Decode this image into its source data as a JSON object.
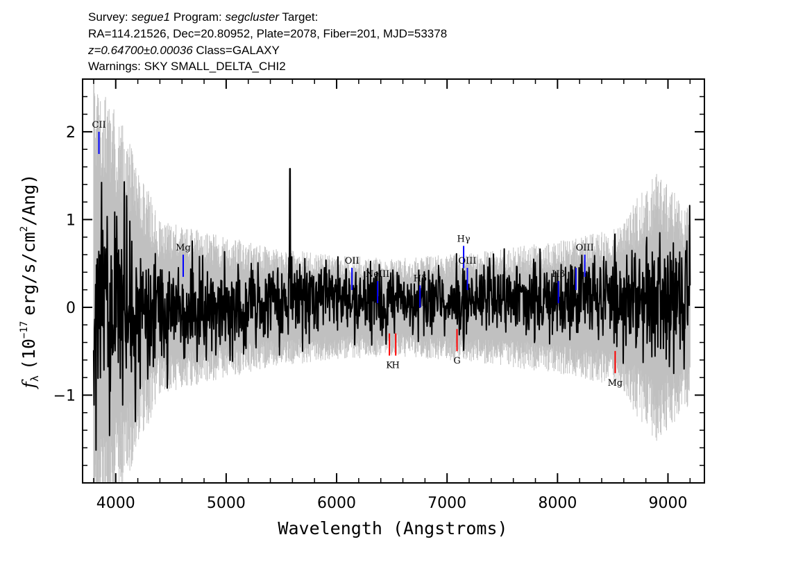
{
  "header": {
    "line1": {
      "survey_prefix": "Survey: ",
      "survey": "segue1",
      "program_prefix": " Program: ",
      "program": "segcluster",
      "target_prefix": " Target:"
    },
    "line2": "RA=114.21526, Dec=20.80952, Plate=2078, Fiber=201, MJD=53378",
    "line3": {
      "z": "z=0.64700±0.00036",
      "class": " Class=GALAXY"
    },
    "line4": "Warnings: SKY SMALL_DELTA_CHI2"
  },
  "chart_data": {
    "type": "line",
    "xlabel": "Wavelength (Angstroms)",
    "ylabel": {
      "symbol": "f",
      "subscript": "λ",
      "rest": "(10",
      "exp": "−17",
      "unit": "erg/s/cm",
      "sq": "2",
      "tail": "/Ang)"
    },
    "xlim": [
      3700,
      9330
    ],
    "ylim": [
      -2.0,
      2.6
    ],
    "xticks": [
      {
        "v": 4000,
        "label": "4000"
      },
      {
        "v": 5000,
        "label": "5000"
      },
      {
        "v": 6000,
        "label": "6000"
      },
      {
        "v": 7000,
        "label": "7000"
      },
      {
        "v": 8000,
        "label": "8000"
      },
      {
        "v": 9000,
        "label": "9000"
      }
    ],
    "yticks": [
      {
        "v": 2,
        "label": "2"
      },
      {
        "v": 1,
        "label": "1"
      },
      {
        "v": 0,
        "label": "0"
      },
      {
        "v": -1,
        "label": "−1"
      }
    ],
    "grid": false,
    "colors": {
      "flux": "#000000",
      "error": "#c0c0c0",
      "emission": "#0000ff",
      "absorption": "#ff0000"
    },
    "spectrum": {
      "x_range": [
        3800,
        9200
      ],
      "continuum": [
        [
          3800,
          0.0
        ],
        [
          4200,
          -0.05
        ],
        [
          5000,
          0.0
        ],
        [
          6000,
          0.1
        ],
        [
          7000,
          0.05
        ],
        [
          8000,
          0.1
        ],
        [
          9200,
          0.1
        ]
      ],
      "noise_sigma": [
        [
          3800,
          0.7
        ],
        [
          4000,
          0.6
        ],
        [
          4300,
          0.35
        ],
        [
          5500,
          0.22
        ],
        [
          6500,
          0.2
        ],
        [
          7500,
          0.2
        ],
        [
          8500,
          0.25
        ],
        [
          9200,
          0.4
        ]
      ],
      "error_band": [
        [
          3800,
          2.5
        ],
        [
          4100,
          1.8
        ],
        [
          4400,
          0.9
        ],
        [
          5500,
          0.6
        ],
        [
          6500,
          0.5
        ],
        [
          7500,
          0.6
        ],
        [
          8500,
          0.8
        ],
        [
          8900,
          1.4
        ],
        [
          9200,
          1.0
        ]
      ],
      "features": [
        {
          "x": 5578,
          "y": 1.58
        },
        {
          "x": 5893,
          "y": 0.45
        }
      ]
    },
    "emission_lines": [
      {
        "label": "CII",
        "x": 3848,
        "y": 2.0
      },
      {
        "label": "Mg",
        "x": 4611,
        "y": 0.6
      },
      {
        "label": "OII",
        "x": 6139,
        "y": 0.45
      },
      {
        "label": "NeIII",
        "x": 6371,
        "y": 0.3
      },
      {
        "label": "Hδ",
        "x": 6755,
        "y": 0.25
      },
      {
        "label": "Hγ",
        "x": 7150,
        "y": 0.7
      },
      {
        "label": "OIII",
        "x": 7184,
        "y": 0.45
      },
      {
        "label": "Hβ",
        "x": 8008,
        "y": 0.3
      },
      {
        "label": "",
        "x": 8167,
        "y": 0.45
      },
      {
        "label": "OIII",
        "x": 8247,
        "y": 0.6
      }
    ],
    "absorption_lines": [
      {
        "label": "K",
        "x": 6478,
        "y": -0.55
      },
      {
        "label": "H",
        "x": 6535,
        "y": -0.55
      },
      {
        "label": "G",
        "x": 7090,
        "y": -0.5
      },
      {
        "label": "Mg",
        "x": 8522,
        "y": -0.75
      }
    ]
  }
}
